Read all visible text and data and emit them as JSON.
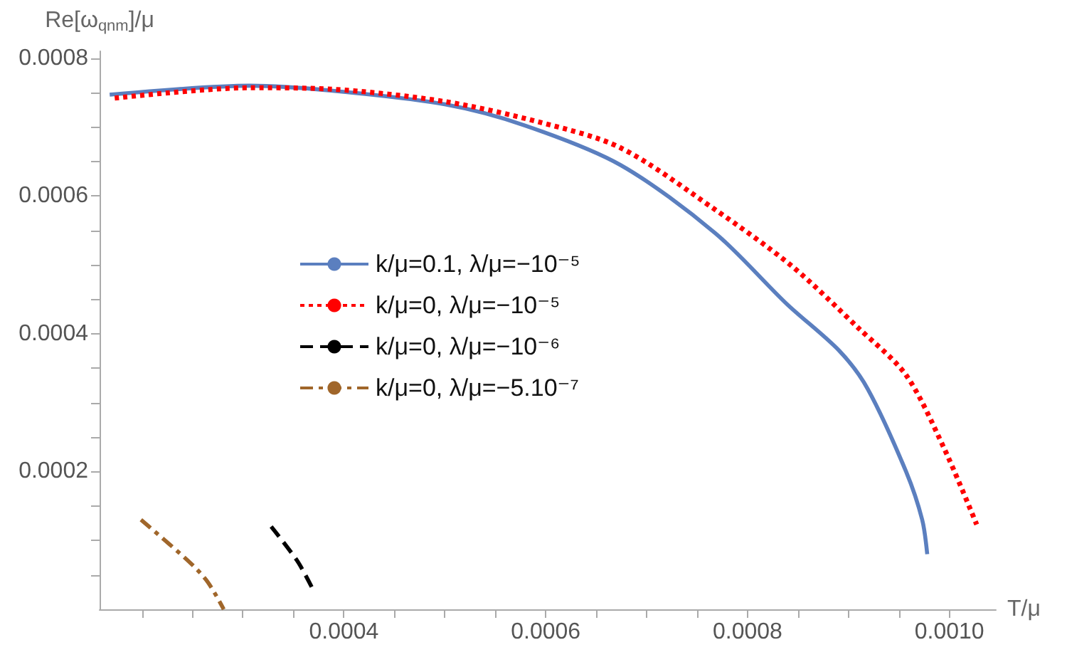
{
  "chart_data": {
    "type": "line",
    "xlabel": "T/μ",
    "ylabel": "Re[ω$_{qnm}$]/μ",
    "xlim": [
      0.000158,
      0.001046
    ],
    "ylim": [
      0,
      0.00081
    ],
    "xticks": [
      {
        "value": 0.0002,
        "label": null
      },
      {
        "value": 0.00025,
        "label": null
      },
      {
        "value": 0.0003,
        "label": null
      },
      {
        "value": 0.00035,
        "label": null
      },
      {
        "value": 0.0004,
        "label": "0.0004"
      },
      {
        "value": 0.00045,
        "label": null
      },
      {
        "value": 0.0005,
        "label": null
      },
      {
        "value": 0.00055,
        "label": null
      },
      {
        "value": 0.0006,
        "label": "0.0006"
      },
      {
        "value": 0.00065,
        "label": null
      },
      {
        "value": 0.0007,
        "label": null
      },
      {
        "value": 0.00075,
        "label": null
      },
      {
        "value": 0.0008,
        "label": "0.0008"
      },
      {
        "value": 0.00085,
        "label": null
      },
      {
        "value": 0.0009,
        "label": null
      },
      {
        "value": 0.00095,
        "label": null
      },
      {
        "value": 0.001,
        "label": "0.0010"
      }
    ],
    "yticks": [
      {
        "value": 5e-05,
        "label": null
      },
      {
        "value": 0.0001,
        "label": null
      },
      {
        "value": 0.00015,
        "label": null
      },
      {
        "value": 0.0002,
        "label": "0.0002"
      },
      {
        "value": 0.00025,
        "label": null
      },
      {
        "value": 0.0003,
        "label": null
      },
      {
        "value": 0.00035,
        "label": null
      },
      {
        "value": 0.0004,
        "label": "0.0004"
      },
      {
        "value": 0.00045,
        "label": null
      },
      {
        "value": 0.0005,
        "label": null
      },
      {
        "value": 0.00055,
        "label": null
      },
      {
        "value": 0.0006,
        "label": "0.0006"
      },
      {
        "value": 0.00065,
        "label": null
      },
      {
        "value": 0.0007,
        "label": null
      },
      {
        "value": 0.00075,
        "label": null
      },
      {
        "value": 0.0008,
        "label": "0.0008"
      }
    ],
    "grid": false,
    "legend": "center",
    "marker": "none",
    "series": [
      {
        "name": "k/μ=0.1, λ/μ=−10⁻⁵",
        "color": "#5b7fbf",
        "line_style": "solid",
        "x": [
          0.000168,
          0.000307,
          0.000387,
          0.0005,
          0.00058,
          0.000674,
          0.000768,
          0.000839,
          0.000891,
          0.000919,
          0.000957,
          0.000973,
          0.000978
        ],
        "values": [
          0.000747,
          0.00076,
          0.000753,
          0.000733,
          0.000702,
          0.000645,
          0.000546,
          0.000443,
          0.000375,
          0.00032,
          0.0002,
          0.00013,
          8e-05
        ]
      },
      {
        "name": "k/μ=0, λ/μ=−10⁻⁵",
        "color": "#ff0000",
        "line_style": "dotted",
        "x": [
          0.000173,
          0.000307,
          0.000387,
          0.0005,
          0.000594,
          0.000674,
          0.000768,
          0.000844,
          0.00091,
          0.000957,
          0.000994,
          0.001027
        ],
        "values": [
          0.000742,
          0.000757,
          0.000755,
          0.000737,
          0.000707,
          0.00067,
          0.00058,
          0.000498,
          0.000408,
          0.00034,
          0.000236,
          0.000123
        ]
      },
      {
        "name": "k/μ=0, λ/μ=−10⁻⁶",
        "color": "#000000",
        "line_style": "dashed",
        "x": [
          0.000328,
          0.000354,
          0.000369
        ],
        "values": [
          0.00012,
          7e-05,
          3e-05
        ]
      },
      {
        "name": "k/μ=0, λ/μ=−5.10⁻⁷",
        "color": "#a0662a",
        "line_style": "dashdot",
        "x": [
          0.000199,
          0.000246,
          0.000265,
          0.000281
        ],
        "values": [
          0.00013,
          7e-05,
          4e-05,
          0
        ]
      }
    ]
  }
}
